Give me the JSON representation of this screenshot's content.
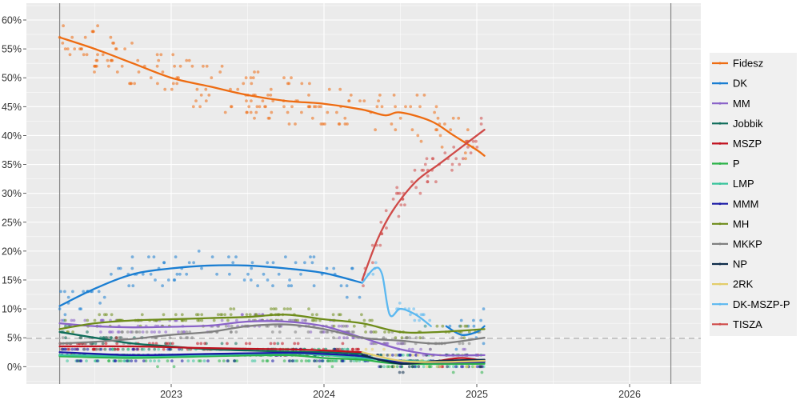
{
  "chart_data": {
    "type": "scatter",
    "title": "",
    "xlabel": "",
    "ylabel": "",
    "y_ticks": [
      "0%",
      "5%",
      "10%",
      "15%",
      "20%",
      "25%",
      "30%",
      "35%",
      "40%",
      "45%",
      "50%",
      "55%",
      "60%"
    ],
    "x_ticks": [
      "2023",
      "2024",
      "2025",
      "2026"
    ],
    "ylim": [
      -2,
      62
    ],
    "xlim": [
      2022.1,
      2026.45
    ],
    "grid": true,
    "threshold_line": {
      "value": 5,
      "style": "dashed",
      "color": "#aaaaaa"
    },
    "vertical_markers": [
      2022.27,
      2026.27
    ],
    "legend_position": "right",
    "series": [
      {
        "name": "Fidesz",
        "color": "#ee6c12",
        "trend": [
          [
            2022.27,
            57
          ],
          [
            2022.5,
            55
          ],
          [
            2022.75,
            52.5
          ],
          [
            2023.0,
            50
          ],
          [
            2023.25,
            48.5
          ],
          [
            2023.5,
            47
          ],
          [
            2023.75,
            46
          ],
          [
            2024.0,
            45.5
          ],
          [
            2024.25,
            44.5
          ],
          [
            2024.4,
            43.5
          ],
          [
            2024.5,
            44
          ],
          [
            2024.7,
            42.5
          ],
          [
            2024.85,
            40
          ],
          [
            2025.0,
            37.5
          ],
          [
            2025.05,
            36.5
          ]
        ]
      },
      {
        "name": "DK",
        "color": "#1a7ed2",
        "trend": [
          [
            2022.27,
            10.5
          ],
          [
            2022.5,
            13.5
          ],
          [
            2022.75,
            16
          ],
          [
            2023.0,
            17
          ],
          [
            2023.25,
            17.5
          ],
          [
            2023.5,
            17.5
          ],
          [
            2023.75,
            17
          ],
          [
            2024.0,
            16.2
          ],
          [
            2024.25,
            14.5
          ]
        ],
        "trend2": [
          [
            2024.8,
            7
          ],
          [
            2024.9,
            5.5
          ],
          [
            2025.0,
            6
          ],
          [
            2025.05,
            7
          ]
        ]
      },
      {
        "name": "MM",
        "color": "#8a63c8",
        "trend": [
          [
            2022.27,
            7.5
          ],
          [
            2022.5,
            7
          ],
          [
            2022.75,
            6.8
          ],
          [
            2023.0,
            6.9
          ],
          [
            2023.25,
            7.1
          ],
          [
            2023.5,
            7.8
          ],
          [
            2023.75,
            7.8
          ],
          [
            2024.0,
            7
          ],
          [
            2024.25,
            5
          ],
          [
            2024.5,
            3
          ],
          [
            2024.75,
            2
          ],
          [
            2025.05,
            2
          ]
        ]
      },
      {
        "name": "Jobbik",
        "color": "#0f6d5a",
        "trend": [
          [
            2022.27,
            6
          ],
          [
            2022.5,
            5
          ],
          [
            2022.75,
            4
          ],
          [
            2023.0,
            3.5
          ],
          [
            2023.25,
            3
          ],
          [
            2023.5,
            2.8
          ],
          [
            2023.75,
            2.6
          ],
          [
            2024.0,
            2.5
          ],
          [
            2024.25,
            2.2
          ]
        ]
      },
      {
        "name": "MSZP",
        "color": "#c1121f",
        "trend": [
          [
            2022.27,
            3.5
          ],
          [
            2022.75,
            3.5
          ],
          [
            2023.25,
            3.2
          ],
          [
            2023.75,
            3
          ],
          [
            2024.0,
            2.8
          ],
          [
            2024.25,
            2.5
          ]
        ],
        "trend2": [
          [
            2024.75,
            1
          ],
          [
            2024.9,
            1.5
          ],
          [
            2025.05,
            1
          ]
        ]
      },
      {
        "name": "P",
        "color": "#2cb34a",
        "trend": [
          [
            2022.27,
            1.8
          ],
          [
            2022.75,
            1.5
          ],
          [
            2023.25,
            1.8
          ],
          [
            2023.75,
            2
          ],
          [
            2024.0,
            1.5
          ],
          [
            2024.25,
            1.2
          ],
          [
            2024.5,
            0.5
          ],
          [
            2025.05,
            0.5
          ]
        ]
      },
      {
        "name": "LMP",
        "color": "#39c49c",
        "trend": [
          [
            2022.27,
            2
          ],
          [
            2022.75,
            1.8
          ],
          [
            2023.25,
            2
          ],
          [
            2023.75,
            2.3
          ],
          [
            2024.0,
            2
          ],
          [
            2024.25,
            1.5
          ],
          [
            2024.5,
            1
          ],
          [
            2025.05,
            0.8
          ]
        ]
      },
      {
        "name": "MMM",
        "color": "#1a1aa6",
        "trend": [
          [
            2022.27,
            2.5
          ],
          [
            2022.75,
            2
          ],
          [
            2023.25,
            2.2
          ],
          [
            2023.75,
            2.4
          ],
          [
            2024.0,
            2.2
          ],
          [
            2024.25,
            1.8
          ],
          [
            2024.5,
            0.8
          ],
          [
            2025.05,
            0.8
          ]
        ]
      },
      {
        "name": "MH",
        "color": "#6e8c1a",
        "trend": [
          [
            2022.27,
            6.5
          ],
          [
            2022.5,
            7.5
          ],
          [
            2022.75,
            8
          ],
          [
            2023.0,
            8.2
          ],
          [
            2023.25,
            8.4
          ],
          [
            2023.5,
            8.6
          ],
          [
            2023.75,
            9
          ],
          [
            2024.0,
            8.2
          ],
          [
            2024.25,
            7.5
          ],
          [
            2024.5,
            6
          ],
          [
            2024.75,
            6
          ],
          [
            2025.05,
            6.5
          ]
        ]
      },
      {
        "name": "MKKP",
        "color": "#808080",
        "trend": [
          [
            2022.27,
            4
          ],
          [
            2022.5,
            4.3
          ],
          [
            2022.75,
            4.8
          ],
          [
            2023.0,
            5.5
          ],
          [
            2023.25,
            6
          ],
          [
            2023.5,
            7
          ],
          [
            2023.75,
            7.3
          ],
          [
            2024.0,
            6.5
          ],
          [
            2024.25,
            5
          ],
          [
            2024.5,
            4.5
          ],
          [
            2024.75,
            4
          ],
          [
            2025.05,
            5
          ]
        ]
      },
      {
        "name": "NP",
        "color": "#0d2c4a",
        "trend": [
          [
            2024.25,
            2
          ],
          [
            2024.5,
            0.5
          ],
          [
            2024.75,
            1
          ],
          [
            2025.05,
            1.2
          ]
        ]
      },
      {
        "name": "2RK",
        "color": "#e3cd6a",
        "trend": [
          [
            2024.25,
            2.5
          ],
          [
            2024.5,
            1
          ],
          [
            2024.75,
            0.8
          ],
          [
            2025.05,
            1
          ]
        ]
      },
      {
        "name": "DK-MSZP-P",
        "color": "#5bb8f0",
        "trend": [
          [
            2024.25,
            14.5
          ],
          [
            2024.33,
            17
          ],
          [
            2024.38,
            16
          ],
          [
            2024.43,
            9
          ],
          [
            2024.5,
            10
          ],
          [
            2024.6,
            9
          ],
          [
            2024.7,
            7
          ]
        ]
      },
      {
        "name": "TISZA",
        "color": "#cf4a48",
        "trend": [
          [
            2024.25,
            15
          ],
          [
            2024.35,
            22
          ],
          [
            2024.45,
            27
          ],
          [
            2024.6,
            32
          ],
          [
            2024.75,
            35
          ],
          [
            2024.9,
            38
          ],
          [
            2025.05,
            41
          ]
        ]
      }
    ]
  },
  "legend": {
    "items": [
      {
        "label": "Fidesz",
        "color": "#ee6c12"
      },
      {
        "label": "DK",
        "color": "#1a7ed2"
      },
      {
        "label": "MM",
        "color": "#8a63c8"
      },
      {
        "label": "Jobbik",
        "color": "#0f6d5a"
      },
      {
        "label": "MSZP",
        "color": "#c1121f"
      },
      {
        "label": "P",
        "color": "#2cb34a"
      },
      {
        "label": "LMP",
        "color": "#39c49c"
      },
      {
        "label": "MMM",
        "color": "#1a1aa6"
      },
      {
        "label": "MH",
        "color": "#6e8c1a"
      },
      {
        "label": "MKKP",
        "color": "#808080"
      },
      {
        "label": "NP",
        "color": "#0d2c4a"
      },
      {
        "label": "2RK",
        "color": "#e3cd6a"
      },
      {
        "label": "DK-MSZP-P",
        "color": "#5bb8f0"
      },
      {
        "label": "TISZA",
        "color": "#cf4a48"
      }
    ]
  }
}
